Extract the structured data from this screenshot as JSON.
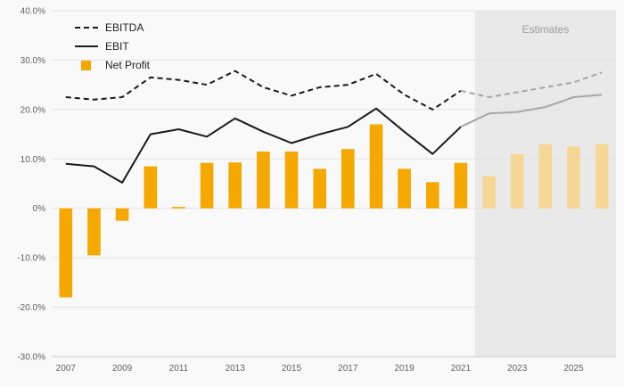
{
  "page": {
    "background": "#f9f9f9"
  },
  "legend": {
    "items": [
      {
        "label": "EBITDA",
        "swatch": "dashed-line"
      },
      {
        "label": "EBIT",
        "swatch": "solid-line"
      },
      {
        "label": "Net Profit",
        "swatch": "square"
      }
    ]
  },
  "chart_data": {
    "type": "combo",
    "x": [
      2007,
      2008,
      2009,
      2010,
      2011,
      2012,
      2013,
      2014,
      2015,
      2016,
      2017,
      2018,
      2019,
      2020,
      2021,
      2022,
      2023,
      2024,
      2025,
      2026
    ],
    "series": [
      {
        "name": "EBITDA",
        "type": "line",
        "dash": true,
        "color": "#1a1a1a",
        "estimate_color": "#a6a6a6",
        "values": [
          22.5,
          22.0,
          22.5,
          26.5,
          26.0,
          25.0,
          27.8,
          24.5,
          22.8,
          24.5,
          25.0,
          27.2,
          23.0,
          20.0,
          23.8,
          22.5,
          23.5,
          24.5,
          25.5,
          27.5
        ]
      },
      {
        "name": "EBIT",
        "type": "line",
        "dash": false,
        "color": "#1a1a1a",
        "estimate_color": "#a6a6a6",
        "values": [
          9.0,
          8.5,
          5.2,
          15.0,
          16.0,
          14.5,
          18.2,
          15.5,
          13.2,
          15.0,
          16.5,
          20.2,
          15.5,
          11.0,
          16.5,
          19.2,
          19.5,
          20.5,
          22.5,
          23.0
        ]
      },
      {
        "name": "Net Profit",
        "type": "bar",
        "color": "#F5A800",
        "estimate_color": "#F7D795",
        "values": [
          -18.0,
          -9.5,
          -2.5,
          8.5,
          0.3,
          9.2,
          9.3,
          11.5,
          11.5,
          8.0,
          12.0,
          17.0,
          8.0,
          5.3,
          9.2,
          6.5,
          11.0,
          13.0,
          12.5,
          13.0
        ]
      }
    ],
    "ylim": [
      -30,
      40
    ],
    "yticks": [
      40,
      30,
      20,
      10,
      0,
      -10,
      -20,
      -30
    ],
    "ytick_labels": [
      "40.0%",
      "30.0%",
      "20.0%",
      "10.0%",
      "0%",
      "-10.0%",
      "-20.0%",
      "-30.0%"
    ],
    "xtick_labels": [
      "2007",
      "2009",
      "2011",
      "2013",
      "2015",
      "2017",
      "2019",
      "2021",
      "2023",
      "2025"
    ],
    "estimates": {
      "start_year": 2022,
      "label": "Estimates",
      "bg": "#e9e9e9",
      "label_color": "#9a9a9a"
    },
    "grid_color": "#e3e3e3",
    "axis_color": "#cccccc",
    "tick_color": "#606060",
    "legend_position": "top-left",
    "grid": true
  }
}
